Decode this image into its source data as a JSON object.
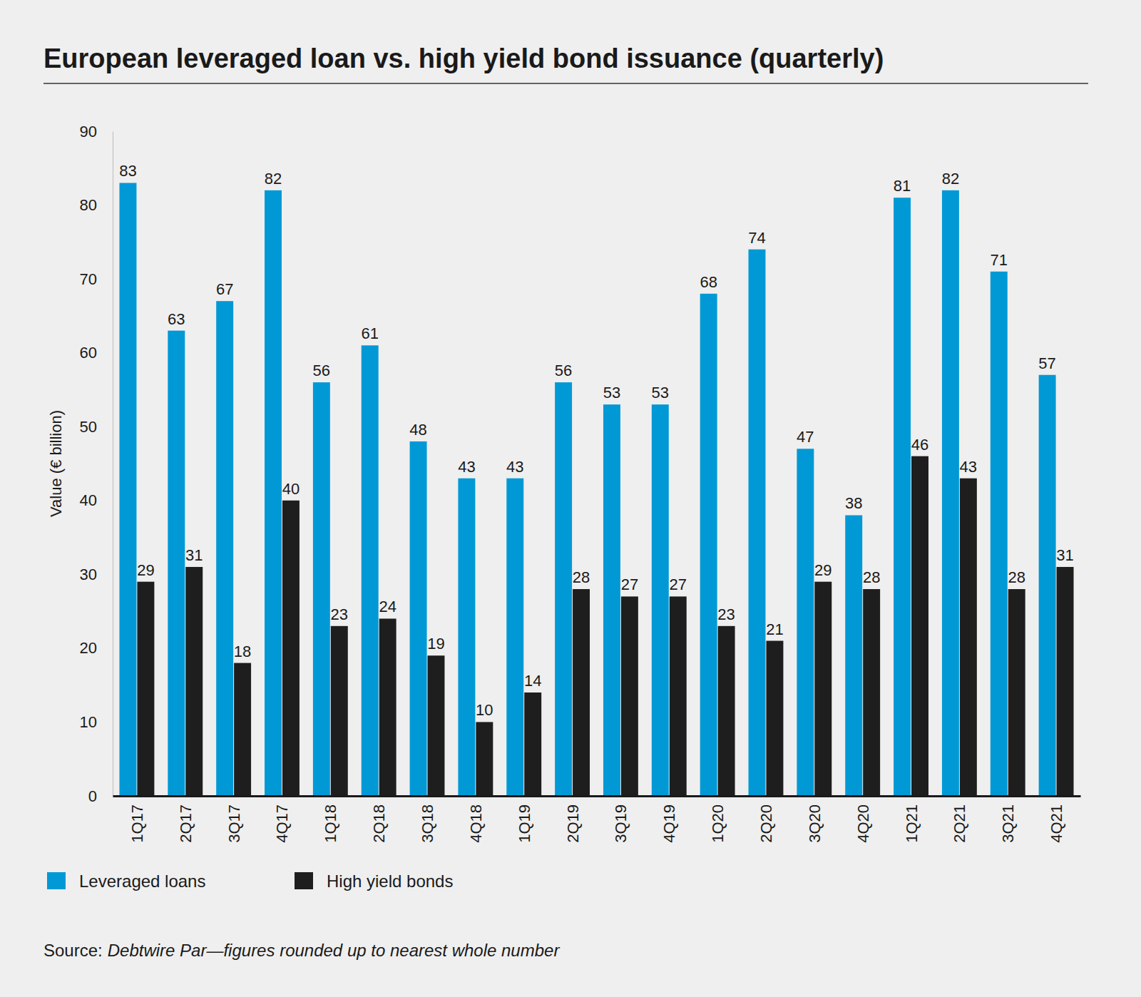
{
  "chart_data": {
    "type": "bar",
    "title": "European leveraged loan vs. high yield bond issuance (quarterly)",
    "y_label": "Value (€ billion)",
    "categories": [
      "1Q17",
      "2Q17",
      "3Q17",
      "4Q17",
      "1Q18",
      "2Q18",
      "3Q18",
      "4Q18",
      "1Q19",
      "2Q19",
      "3Q19",
      "4Q19",
      "1Q20",
      "2Q20",
      "3Q20",
      "4Q20",
      "1Q21",
      "2Q21",
      "3Q21",
      "4Q21"
    ],
    "series": [
      {
        "name": "Leveraged loans",
        "color": "#0099d6",
        "values": [
          83,
          63,
          67,
          82,
          56,
          61,
          48,
          43,
          43,
          56,
          53,
          53,
          68,
          74,
          47,
          38,
          81,
          82,
          71,
          57
        ]
      },
      {
        "name": "High yield bonds",
        "color": "#1e1e1e",
        "values": [
          29,
          31,
          18,
          40,
          23,
          24,
          19,
          10,
          14,
          28,
          27,
          27,
          23,
          21,
          29,
          28,
          46,
          43,
          28,
          31
        ]
      }
    ],
    "ylim": [
      0,
      90
    ],
    "yticks": [
      0,
      10,
      20,
      30,
      40,
      50,
      60,
      70,
      80,
      90
    ],
    "grid": false,
    "legend": "bottom-left",
    "data_labels": true,
    "source_label": "Source:",
    "source": "Debtwire Par—figures rounded up to nearest whole number"
  }
}
